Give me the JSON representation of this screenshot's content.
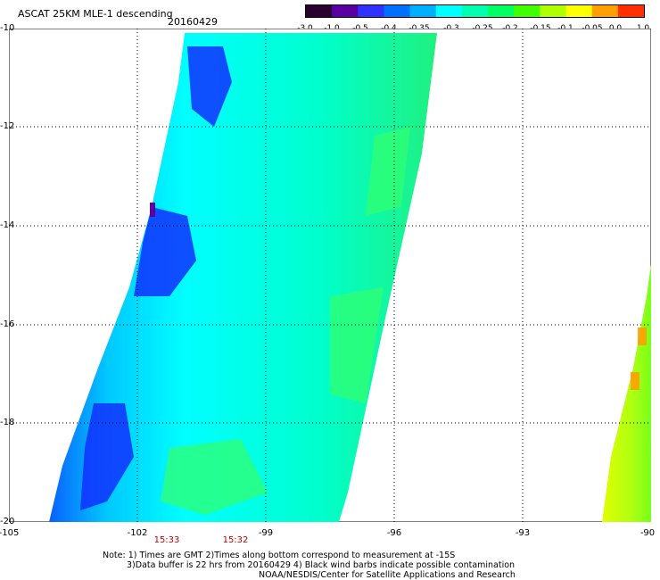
{
  "header": {
    "title": "ASCAT 25KM MLE-1 descending",
    "date": "20160429"
  },
  "colorbar": {
    "labels": [
      "-3.0",
      "-1.0",
      "-0.5",
      "-0.4",
      "-0.35",
      "-0.3",
      "-0.25",
      "-0.2",
      "-0.15",
      "-0.1",
      "-0.05",
      "0.0",
      "1.0"
    ],
    "colors": [
      "#2a0030",
      "#5a00a0",
      "#3030ff",
      "#0070ff",
      "#00b0ff",
      "#00ffff",
      "#00ffb0",
      "#00ff60",
      "#40ff00",
      "#b0ff00",
      "#ffff00",
      "#ffa000",
      "#ff3000"
    ]
  },
  "axes": {
    "y_ticks": [
      "-10",
      "-12",
      "-14",
      "-16",
      "-18",
      "-20"
    ],
    "x_ticks": [
      "-105",
      "-102",
      "-99",
      "-96",
      "-93",
      "-90"
    ]
  },
  "swath_times": [
    "15:33",
    "15:32"
  ],
  "notes": {
    "line1": "Note: 1) Times are GMT 2)Times along bottom correspond to measurement at -15S",
    "line2": "3)Data buffer is 22 hrs from 20160429 4) Black wind barbs indicate possible contamination",
    "line3": "NOAA/NESDIS/Center for Satellite Applications and Research"
  }
}
